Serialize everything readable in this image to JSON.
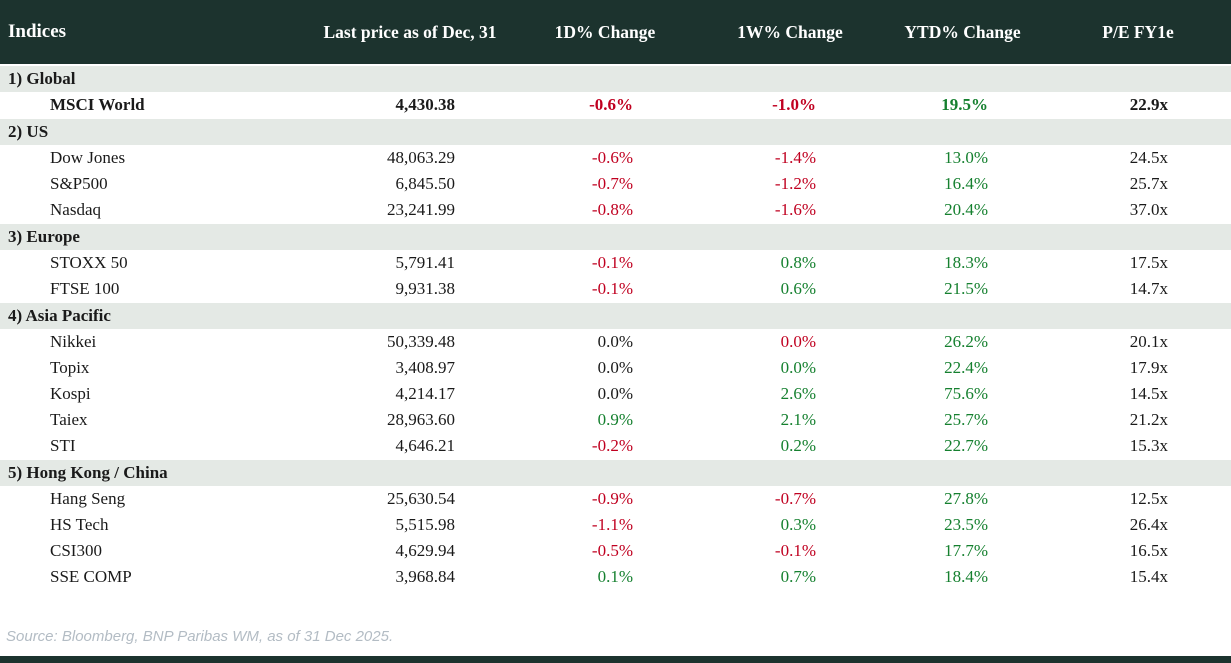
{
  "chart_data": {
    "type": "table",
    "title": "Indices",
    "columns": [
      "Indices",
      "Last price as of Dec, 31",
      "1D% Change",
      "1W% Change",
      "YTD% Change",
      "P/E FY1e"
    ],
    "sections": [
      {
        "label": "1) Global",
        "rows": [
          {
            "name": "MSCI World",
            "bold": true,
            "last_price": "4,430.38",
            "change_1d": {
              "value": "-0.6%",
              "color": "neg"
            },
            "change_1w": {
              "value": "-1.0%",
              "color": "neg"
            },
            "change_ytd": {
              "value": "19.5%",
              "color": "pos"
            },
            "pe_fy1e": "22.9x"
          }
        ]
      },
      {
        "label": "2) US",
        "rows": [
          {
            "name": "Dow Jones",
            "bold": false,
            "last_price": "48,063.29",
            "change_1d": {
              "value": "-0.6%",
              "color": "neg"
            },
            "change_1w": {
              "value": "-1.4%",
              "color": "neg"
            },
            "change_ytd": {
              "value": "13.0%",
              "color": "pos"
            },
            "pe_fy1e": "24.5x"
          },
          {
            "name": "S&P500",
            "bold": false,
            "last_price": "6,845.50",
            "change_1d": {
              "value": "-0.7%",
              "color": "neg"
            },
            "change_1w": {
              "value": "-1.2%",
              "color": "neg"
            },
            "change_ytd": {
              "value": "16.4%",
              "color": "pos"
            },
            "pe_fy1e": "25.7x"
          },
          {
            "name": "Nasdaq",
            "bold": false,
            "last_price": "23,241.99",
            "change_1d": {
              "value": "-0.8%",
              "color": "neg"
            },
            "change_1w": {
              "value": "-1.6%",
              "color": "neg"
            },
            "change_ytd": {
              "value": "20.4%",
              "color": "pos"
            },
            "pe_fy1e": "37.0x"
          }
        ]
      },
      {
        "label": "3) Europe",
        "rows": [
          {
            "name": "STOXX 50",
            "bold": false,
            "last_price": "5,791.41",
            "change_1d": {
              "value": "-0.1%",
              "color": "neg"
            },
            "change_1w": {
              "value": "0.8%",
              "color": "pos"
            },
            "change_ytd": {
              "value": "18.3%",
              "color": "pos"
            },
            "pe_fy1e": "17.5x"
          },
          {
            "name": "FTSE 100",
            "bold": false,
            "last_price": "9,931.38",
            "change_1d": {
              "value": "-0.1%",
              "color": "neg"
            },
            "change_1w": {
              "value": "0.6%",
              "color": "pos"
            },
            "change_ytd": {
              "value": "21.5%",
              "color": "pos"
            },
            "pe_fy1e": "14.7x"
          }
        ]
      },
      {
        "label": "4) Asia Pacific",
        "rows": [
          {
            "name": "Nikkei",
            "bold": false,
            "last_price": "50,339.48",
            "change_1d": {
              "value": "0.0%",
              "color": "neu"
            },
            "change_1w": {
              "value": "0.0%",
              "color": "neg"
            },
            "change_ytd": {
              "value": "26.2%",
              "color": "pos"
            },
            "pe_fy1e": "20.1x"
          },
          {
            "name": "Topix",
            "bold": false,
            "last_price": "3,408.97",
            "change_1d": {
              "value": "0.0%",
              "color": "neu"
            },
            "change_1w": {
              "value": "0.0%",
              "color": "pos"
            },
            "change_ytd": {
              "value": "22.4%",
              "color": "pos"
            },
            "pe_fy1e": "17.9x"
          },
          {
            "name": "Kospi",
            "bold": false,
            "last_price": "4,214.17",
            "change_1d": {
              "value": "0.0%",
              "color": "neu"
            },
            "change_1w": {
              "value": "2.6%",
              "color": "pos"
            },
            "change_ytd": {
              "value": "75.6%",
              "color": "pos"
            },
            "pe_fy1e": "14.5x"
          },
          {
            "name": "Taiex",
            "bold": false,
            "last_price": "28,963.60",
            "change_1d": {
              "value": "0.9%",
              "color": "pos"
            },
            "change_1w": {
              "value": "2.1%",
              "color": "pos"
            },
            "change_ytd": {
              "value": "25.7%",
              "color": "pos"
            },
            "pe_fy1e": "21.2x"
          },
          {
            "name": "STI",
            "bold": false,
            "last_price": "4,646.21",
            "change_1d": {
              "value": "-0.2%",
              "color": "neg"
            },
            "change_1w": {
              "value": "0.2%",
              "color": "pos"
            },
            "change_ytd": {
              "value": "22.7%",
              "color": "pos"
            },
            "pe_fy1e": "15.3x"
          }
        ]
      },
      {
        "label": "5) Hong Kong / China",
        "rows": [
          {
            "name": "Hang Seng",
            "bold": false,
            "last_price": "25,630.54",
            "change_1d": {
              "value": "-0.9%",
              "color": "neg"
            },
            "change_1w": {
              "value": "-0.7%",
              "color": "neg"
            },
            "change_ytd": {
              "value": "27.8%",
              "color": "pos"
            },
            "pe_fy1e": "12.5x"
          },
          {
            "name": "HS Tech",
            "bold": false,
            "last_price": "5,515.98",
            "change_1d": {
              "value": "-1.1%",
              "color": "neg"
            },
            "change_1w": {
              "value": "0.3%",
              "color": "pos"
            },
            "change_ytd": {
              "value": "23.5%",
              "color": "pos"
            },
            "pe_fy1e": "26.4x"
          },
          {
            "name": "CSI300",
            "bold": false,
            "last_price": "4,629.94",
            "change_1d": {
              "value": "-0.5%",
              "color": "neg"
            },
            "change_1w": {
              "value": "-0.1%",
              "color": "neg"
            },
            "change_ytd": {
              "value": "17.7%",
              "color": "pos"
            },
            "pe_fy1e": "16.5x"
          },
          {
            "name": "SSE COMP",
            "bold": false,
            "last_price": "3,968.84",
            "change_1d": {
              "value": "0.1%",
              "color": "pos"
            },
            "change_1w": {
              "value": "0.7%",
              "color": "pos"
            },
            "change_ytd": {
              "value": "18.4%",
              "color": "pos"
            },
            "pe_fy1e": "15.4x"
          }
        ]
      }
    ],
    "source_note": "Source: Bloomberg, BNP Paribas WM, as of 31 Dec 2025."
  },
  "colors": {
    "header_bg": "#1c332e",
    "header_text": "#ffffff",
    "section_bg": "#e4e9e5",
    "row_bg": "#ffffff",
    "negative": "#c00020",
    "positive": "#15802f",
    "neutral": "#1a1a1a",
    "source_text": "#b3bcc4"
  }
}
